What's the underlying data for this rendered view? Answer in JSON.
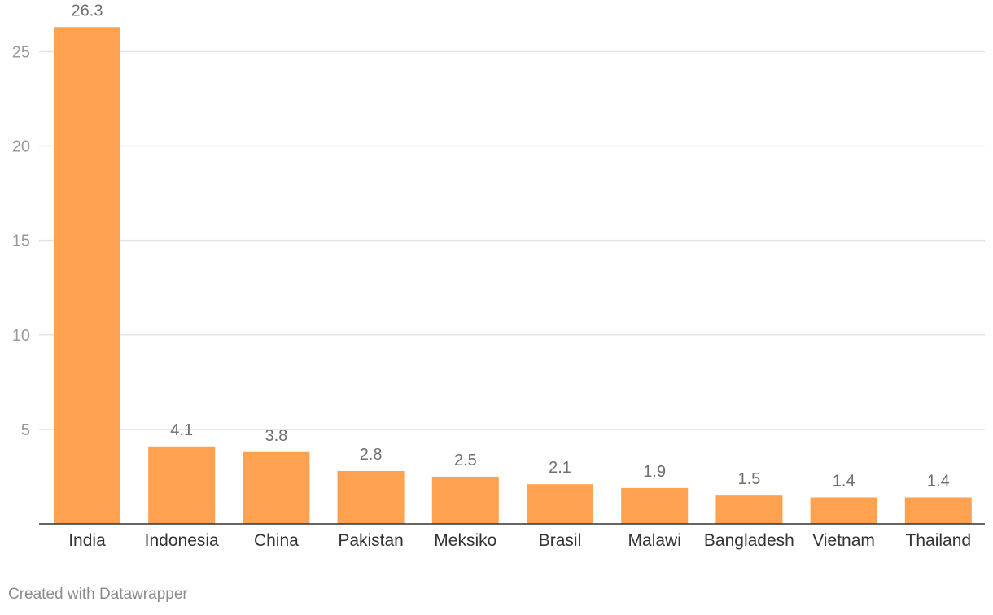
{
  "colors": {
    "bar": "#fea150",
    "grid": "#e4e4e4",
    "baseline": "#333333",
    "tick_text": "#999999",
    "label_text": "#333333",
    "value_text": "#6e6e6e"
  },
  "chart_data": {
    "type": "bar",
    "categories": [
      "India",
      "Indonesia",
      "China",
      "Pakistan",
      "Meksiko",
      "Brasil",
      "Malawi",
      "Bangladesh",
      "Vietnam",
      "Thailand"
    ],
    "values": [
      26.3,
      4.1,
      3.8,
      2.8,
      2.5,
      2.1,
      1.9,
      1.5,
      1.4,
      1.4
    ],
    "value_labels": [
      "26.3",
      "4.1",
      "3.8",
      "2.8",
      "2.5",
      "2.1",
      "1.9",
      "1.5",
      "1.4",
      "1.4"
    ],
    "y_ticks": [
      5,
      10,
      15,
      20,
      25
    ],
    "ylim": [
      0,
      27
    ],
    "grid": true,
    "title": "",
    "xlabel": "",
    "ylabel": ""
  },
  "footer": {
    "credit": "Created with Datawrapper"
  }
}
